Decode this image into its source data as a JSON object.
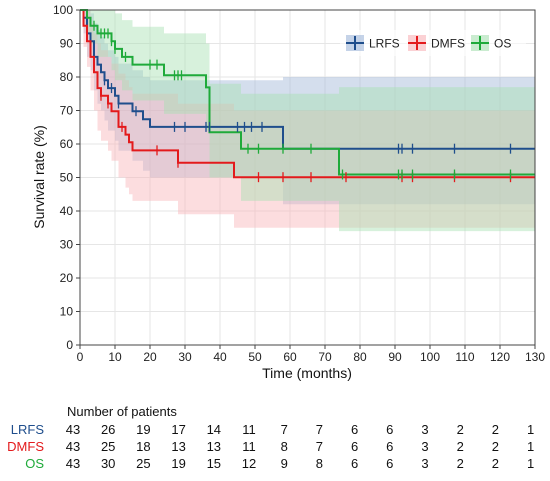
{
  "chart_data": {
    "type": "line",
    "title": "",
    "xlabel": "Time (months)",
    "ylabel": "Survival rate (%)",
    "xlim": [
      0,
      130
    ],
    "ylim": [
      0,
      100
    ],
    "x_ticks": [
      "0",
      "10",
      "20",
      "30",
      "40",
      "50",
      "60",
      "70",
      "80",
      "90",
      "100",
      "110",
      "120",
      "130"
    ],
    "y_ticks": [
      "0",
      "10",
      "20",
      "30",
      "40",
      "50",
      "60",
      "70",
      "80",
      "90",
      "100"
    ],
    "grid": true,
    "legend_position": "top-right",
    "series": [
      {
        "name": "LRFS",
        "color": "#1f4e8c",
        "band_color": "#9fb5d8",
        "steps": [
          [
            0,
            100
          ],
          [
            1,
            97.7
          ],
          [
            2,
            93
          ],
          [
            3,
            90.7
          ],
          [
            4,
            86
          ],
          [
            5,
            83.7
          ],
          [
            6,
            81.4
          ],
          [
            7,
            79
          ],
          [
            8,
            76.7
          ],
          [
            10,
            74.4
          ],
          [
            11,
            72.1
          ],
          [
            15,
            69.8
          ],
          [
            18,
            67.4
          ],
          [
            20,
            65.1
          ],
          [
            58,
            58.6
          ],
          [
            130,
            58.6
          ]
        ],
        "lower": [
          [
            0,
            100
          ],
          [
            1,
            93
          ],
          [
            2,
            86
          ],
          [
            3,
            82
          ],
          [
            4,
            76
          ],
          [
            5,
            72
          ],
          [
            6,
            70
          ],
          [
            7,
            67
          ],
          [
            8,
            64
          ],
          [
            10,
            61
          ],
          [
            11,
            58
          ],
          [
            15,
            55
          ],
          [
            18,
            52
          ],
          [
            20,
            50
          ],
          [
            58,
            42
          ],
          [
            130,
            42
          ]
        ],
        "upper": [
          [
            0,
            100
          ],
          [
            2,
            100
          ],
          [
            3,
            99
          ],
          [
            4,
            96
          ],
          [
            5,
            94
          ],
          [
            6,
            92
          ],
          [
            7,
            90
          ],
          [
            8,
            88
          ],
          [
            10,
            86
          ],
          [
            11,
            84
          ],
          [
            15,
            82
          ],
          [
            18,
            80
          ],
          [
            20,
            79
          ],
          [
            58,
            80
          ],
          [
            130,
            80
          ]
        ],
        "censor_x": [
          7,
          9,
          11,
          16,
          27,
          30,
          36,
          37,
          45,
          47,
          49,
          52,
          91,
          92,
          95,
          107,
          123
        ]
      },
      {
        "name": "DMFS",
        "color": "#e31a1c",
        "band_color": "#f8b3b8",
        "steps": [
          [
            0,
            100
          ],
          [
            1,
            95.3
          ],
          [
            2,
            90.7
          ],
          [
            3,
            86
          ],
          [
            4,
            81.4
          ],
          [
            5,
            76.7
          ],
          [
            6,
            74.4
          ],
          [
            8,
            72.1
          ],
          [
            9,
            69.8
          ],
          [
            11,
            65.1
          ],
          [
            13,
            62.8
          ],
          [
            14,
            60.5
          ],
          [
            15,
            58.1
          ],
          [
            28,
            54.4
          ],
          [
            44,
            50.1
          ],
          [
            130,
            50.1
          ]
        ],
        "lower": [
          [
            0,
            100
          ],
          [
            1,
            89
          ],
          [
            2,
            83
          ],
          [
            3,
            76
          ],
          [
            4,
            70
          ],
          [
            5,
            64
          ],
          [
            6,
            61
          ],
          [
            8,
            58
          ],
          [
            9,
            55
          ],
          [
            11,
            50
          ],
          [
            13,
            47
          ],
          [
            14,
            45
          ],
          [
            15,
            43
          ],
          [
            28,
            39
          ],
          [
            44,
            35
          ],
          [
            74,
            35
          ],
          [
            130,
            35
          ]
        ],
        "upper": [
          [
            0,
            100
          ],
          [
            3,
            96
          ],
          [
            4,
            93
          ],
          [
            5,
            90
          ],
          [
            6,
            88
          ],
          [
            8,
            86
          ],
          [
            9,
            84
          ],
          [
            11,
            81
          ],
          [
            13,
            79
          ],
          [
            14,
            77
          ],
          [
            15,
            75
          ],
          [
            28,
            72
          ],
          [
            44,
            70
          ],
          [
            130,
            70
          ]
        ],
        "censor_x": [
          6,
          8,
          12,
          22,
          28,
          51,
          58,
          66,
          76,
          92,
          95,
          107,
          123
        ]
      },
      {
        "name": "OS",
        "color": "#1faa3a",
        "band_color": "#a6dfb1",
        "steps": [
          [
            0,
            100
          ],
          [
            2,
            97.7
          ],
          [
            3,
            95.3
          ],
          [
            5,
            93
          ],
          [
            9,
            90.7
          ],
          [
            10,
            88.4
          ],
          [
            12,
            86
          ],
          [
            15,
            83.7
          ],
          [
            24,
            80.5
          ],
          [
            36,
            76.9
          ],
          [
            37,
            63.5
          ],
          [
            40,
            63.5
          ],
          [
            46,
            58.6
          ],
          [
            74,
            50.9
          ],
          [
            130,
            50.9
          ]
        ],
        "lower": [
          [
            0,
            100
          ],
          [
            2,
            93
          ],
          [
            3,
            90
          ],
          [
            5,
            86
          ],
          [
            9,
            82
          ],
          [
            10,
            79
          ],
          [
            12,
            76
          ],
          [
            15,
            73
          ],
          [
            24,
            69
          ],
          [
            36,
            64
          ],
          [
            37,
            50
          ],
          [
            46,
            43
          ],
          [
            74,
            34
          ],
          [
            130,
            34
          ]
        ],
        "upper": [
          [
            0,
            100
          ],
          [
            10,
            99
          ],
          [
            12,
            97
          ],
          [
            15,
            95
          ],
          [
            24,
            93
          ],
          [
            36,
            90
          ],
          [
            37,
            78
          ],
          [
            46,
            75
          ],
          [
            74,
            77
          ],
          [
            130,
            77
          ]
        ],
        "censor_x": [
          4,
          6,
          7,
          8,
          9,
          10,
          13,
          20,
          22,
          27,
          28,
          29,
          48,
          51,
          58,
          66,
          75,
          91,
          92,
          95,
          107,
          123
        ]
      }
    ]
  },
  "risk_table": {
    "title": "Number of patients",
    "rows": [
      {
        "label": "LRFS",
        "color": "#1f4e8c",
        "counts": [
          "43",
          "26",
          "19",
          "17",
          "14",
          "11",
          "7",
          "7",
          "6",
          "6",
          "3",
          "2",
          "2",
          "1"
        ]
      },
      {
        "label": "DMFS",
        "color": "#e31a1c",
        "counts": [
          "43",
          "25",
          "18",
          "13",
          "13",
          "11",
          "8",
          "7",
          "6",
          "6",
          "3",
          "2",
          "2",
          "1"
        ]
      },
      {
        "label": "OS",
        "color": "#1faa3a",
        "counts": [
          "43",
          "30",
          "25",
          "19",
          "15",
          "12",
          "9",
          "8",
          "6",
          "6",
          "3",
          "2",
          "2",
          "1"
        ]
      }
    ]
  }
}
